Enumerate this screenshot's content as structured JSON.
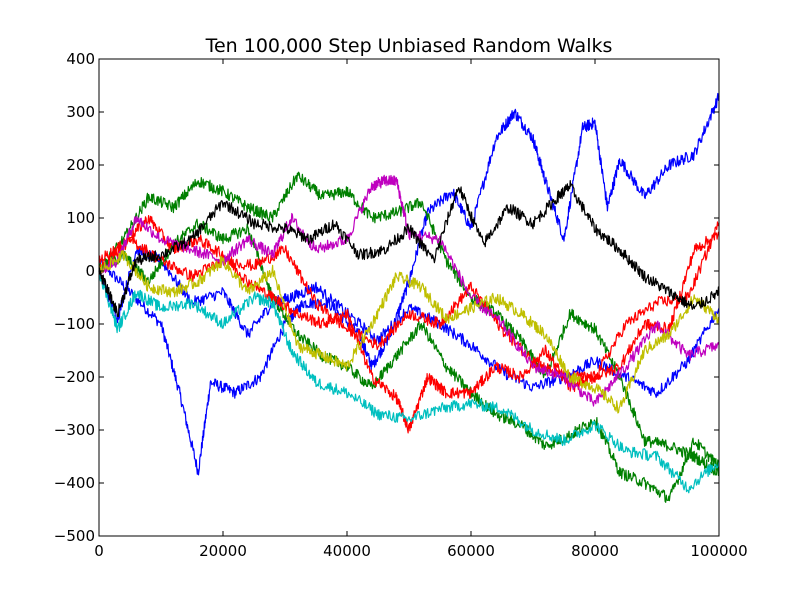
{
  "chart_data": {
    "type": "line",
    "title": "Ten 100,000 Step Unbiased Random Walks",
    "xlabel": "",
    "ylabel": "",
    "xlim": [
      0,
      100000
    ],
    "ylim": [
      -500,
      400
    ],
    "grid": false,
    "x_ticks": [
      0,
      20000,
      40000,
      60000,
      80000,
      100000
    ],
    "y_ticks": [
      -500,
      -400,
      -300,
      -200,
      -100,
      0,
      100,
      200,
      300,
      400
    ],
    "x_tick_labels": [
      "0",
      "20000",
      "40000",
      "60000",
      "80000",
      "100000"
    ],
    "y_tick_labels": [
      "−500",
      "−400",
      "−300",
      "−200",
      "−100",
      "0",
      "100",
      "200",
      "300",
      "400"
    ],
    "series": [
      {
        "color": "#0000ff",
        "x": [
          0,
          5000,
          10000,
          13000,
          16000,
          18000,
          22000,
          26000,
          30000,
          33000,
          37000,
          42000,
          44000,
          47000,
          50000,
          53000,
          57000,
          60000,
          64000,
          67000,
          70000,
          72000,
          75000,
          78000,
          80000,
          82000,
          84000,
          88000,
          92000,
          96000,
          100000
        ],
        "y": [
          20,
          -40,
          -100,
          -230,
          -380,
          -210,
          -230,
          -200,
          -100,
          -60,
          -60,
          -120,
          -180,
          -120,
          -20,
          110,
          150,
          80,
          250,
          300,
          250,
          170,
          60,
          270,
          280,
          120,
          210,
          140,
          200,
          220,
          330
        ]
      },
      {
        "color": "#0000ff",
        "x": [
          0,
          3000,
          6000,
          10000,
          15000,
          20000,
          24000,
          28000,
          31000,
          35000,
          40000,
          45000,
          50000,
          55000,
          60000,
          65000,
          70000,
          75000,
          80000,
          85000,
          90000,
          95000,
          100000
        ],
        "y": [
          0,
          -90,
          40,
          20,
          -60,
          -40,
          -120,
          -60,
          -50,
          -30,
          -80,
          -130,
          -70,
          -100,
          -140,
          -190,
          -220,
          -200,
          -170,
          -200,
          -230,
          -170,
          -70
        ]
      },
      {
        "color": "#008000",
        "x": [
          0,
          4000,
          8000,
          12000,
          16000,
          20000,
          24000,
          28000,
          32000,
          36000,
          40000,
          44000,
          48000,
          52000,
          56000,
          60000,
          64000,
          68000,
          72000,
          76000,
          80000,
          84000,
          88000,
          92000,
          96000,
          100000
        ],
        "y": [
          0,
          60,
          140,
          120,
          170,
          150,
          120,
          100,
          180,
          140,
          150,
          100,
          110,
          130,
          20,
          -50,
          -80,
          -130,
          -200,
          -80,
          -110,
          -200,
          -320,
          -330,
          -350,
          -380
        ]
      },
      {
        "color": "#008000",
        "x": [
          0,
          4000,
          8000,
          12000,
          16000,
          20000,
          24000,
          28000,
          32000,
          36000,
          40000,
          44000,
          48000,
          52000,
          56000,
          60000,
          64000,
          68000,
          72000,
          76000,
          80000,
          84000,
          88000,
          92000,
          96000,
          100000
        ],
        "y": [
          0,
          30,
          -20,
          50,
          90,
          60,
          80,
          -50,
          -120,
          -160,
          -180,
          -220,
          -160,
          -100,
          -180,
          -230,
          -270,
          -290,
          -330,
          -310,
          -280,
          -380,
          -400,
          -430,
          -320,
          -370
        ]
      },
      {
        "color": "#ff0000",
        "x": [
          0,
          4000,
          8000,
          12000,
          16000,
          20000,
          24000,
          28000,
          32000,
          36000,
          40000,
          44000,
          48000,
          50000,
          53000,
          56000,
          60000,
          64000,
          68000,
          72000,
          76000,
          80000,
          84000,
          88000,
          92000,
          96000,
          100000
        ],
        "y": [
          20,
          50,
          100,
          40,
          60,
          30,
          -20,
          -50,
          -80,
          -100,
          -80,
          -200,
          -240,
          -300,
          -200,
          -230,
          -230,
          -180,
          -200,
          -150,
          -220,
          -200,
          -180,
          -100,
          -110,
          40,
          70
        ]
      },
      {
        "color": "#ff0000",
        "x": [
          0,
          5000,
          10000,
          15000,
          20000,
          25000,
          30000,
          35000,
          40000,
          45000,
          50000,
          55000,
          60000,
          65000,
          70000,
          75000,
          80000,
          85000,
          90000,
          95000,
          100000
        ],
        "y": [
          0,
          60,
          20,
          -10,
          20,
          10,
          40,
          -60,
          -110,
          -140,
          -80,
          -100,
          -30,
          -110,
          -170,
          -200,
          -200,
          -100,
          -60,
          -50,
          90
        ]
      },
      {
        "color": "#00bfbf",
        "x": [
          0,
          3000,
          6000,
          10000,
          15000,
          20000,
          25000,
          28000,
          31000,
          35000,
          40000,
          45000,
          50000,
          55000,
          60000,
          65000,
          70000,
          75000,
          80000,
          85000,
          90000,
          95000,
          100000
        ],
        "y": [
          0,
          -110,
          -40,
          -70,
          -60,
          -100,
          -50,
          -60,
          -150,
          -210,
          -230,
          -270,
          -280,
          -260,
          -250,
          -260,
          -300,
          -320,
          -290,
          -340,
          -350,
          -410,
          -360
        ]
      },
      {
        "color": "#bf00bf",
        "x": [
          0,
          3000,
          6000,
          10000,
          15000,
          20000,
          24000,
          28000,
          31000,
          35000,
          40000,
          44000,
          46000,
          48000,
          50000,
          55000,
          60000,
          65000,
          70000,
          75000,
          80000,
          85000,
          90000,
          95000,
          100000
        ],
        "y": [
          0,
          20,
          100,
          60,
          40,
          20,
          60,
          30,
          100,
          40,
          60,
          160,
          170,
          170,
          70,
          60,
          -50,
          -100,
          -180,
          -200,
          -250,
          -180,
          -100,
          -160,
          -140
        ]
      },
      {
        "color": "#bfbf00",
        "x": [
          0,
          4000,
          8000,
          12000,
          16000,
          20000,
          24000,
          28000,
          32000,
          36000,
          40000,
          44000,
          48000,
          52000,
          56000,
          60000,
          64000,
          68000,
          72000,
          76000,
          80000,
          84000,
          88000,
          92000,
          96000,
          100000
        ],
        "y": [
          0,
          30,
          -30,
          -40,
          -20,
          20,
          -40,
          0,
          -140,
          -160,
          -180,
          -100,
          -10,
          -30,
          -90,
          -70,
          -50,
          -80,
          -120,
          -200,
          -220,
          -260,
          -150,
          -120,
          -50,
          -90
        ]
      },
      {
        "color": "#000000",
        "x": [
          0,
          3000,
          6000,
          10000,
          15000,
          20000,
          25000,
          30000,
          34000,
          38000,
          42000,
          46000,
          50000,
          54000,
          58000,
          62000,
          66000,
          70000,
          74000,
          76000,
          80000,
          84000,
          88000,
          92000,
          96000,
          100000
        ],
        "y": [
          0,
          -80,
          20,
          30,
          60,
          130,
          90,
          80,
          60,
          90,
          30,
          40,
          80,
          20,
          160,
          50,
          120,
          90,
          140,
          160,
          80,
          40,
          -10,
          -40,
          -70,
          -40
        ]
      }
    ]
  }
}
